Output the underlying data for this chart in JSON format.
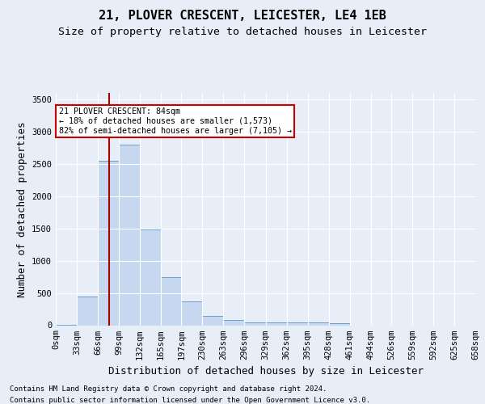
{
  "title": "21, PLOVER CRESCENT, LEICESTER, LE4 1EB",
  "subtitle": "Size of property relative to detached houses in Leicester",
  "xlabel": "Distribution of detached houses by size in Leicester",
  "ylabel": "Number of detached properties",
  "footer_line1": "Contains HM Land Registry data © Crown copyright and database right 2024.",
  "footer_line2": "Contains public sector information licensed under the Open Government Licence v3.0.",
  "bin_edges": [
    0,
    33,
    66,
    99,
    132,
    165,
    197,
    230,
    263,
    296,
    329,
    362,
    395,
    428,
    461,
    494,
    526,
    559,
    592,
    625,
    658
  ],
  "bin_labels": [
    "0sqm",
    "33sqm",
    "66sqm",
    "99sqm",
    "132sqm",
    "165sqm",
    "197sqm",
    "230sqm",
    "263sqm",
    "296sqm",
    "329sqm",
    "362sqm",
    "395sqm",
    "428sqm",
    "461sqm",
    "494sqm",
    "526sqm",
    "559sqm",
    "592sqm",
    "625sqm",
    "658sqm"
  ],
  "bar_heights": [
    10,
    450,
    2550,
    2800,
    1480,
    740,
    370,
    140,
    80,
    50,
    50,
    50,
    50,
    30,
    0,
    0,
    0,
    0,
    0,
    0
  ],
  "bar_color": "#c5d8ef",
  "bar_edge_color": "#6b9ec8",
  "property_size": 84,
  "property_label": "21 PLOVER CRESCENT: 84sqm",
  "pct_smaller": 18,
  "n_smaller": 1573,
  "pct_larger_semi": 82,
  "n_larger_semi": 7105,
  "vline_color": "#aa0000",
  "annotation_box_color": "#cc0000",
  "ylim": [
    0,
    3600
  ],
  "yticks": [
    0,
    500,
    1000,
    1500,
    2000,
    2500,
    3000,
    3500
  ],
  "background_color": "#e8eef8",
  "plot_bg_color": "#e8eef8",
  "grid_color": "#ffffff",
  "title_fontsize": 11,
  "subtitle_fontsize": 9.5,
  "label_fontsize": 9,
  "tick_fontsize": 7.5,
  "footer_fontsize": 6.5
}
